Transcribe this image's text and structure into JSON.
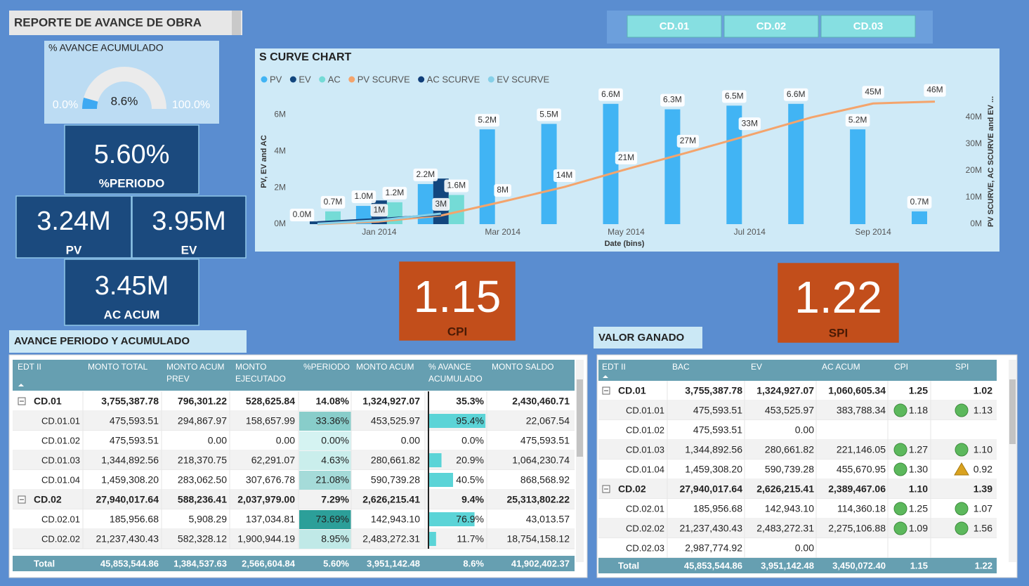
{
  "header": {
    "title": "REPORTE DE AVANCE DE OBRA"
  },
  "filters": [
    "CD.01",
    "CD.02",
    "CD.03"
  ],
  "gauge": {
    "title": "% AVANCE ACUMULADO",
    "value": 8.6,
    "value_label": "8.6%",
    "min": 0,
    "min_label": "0.0%",
    "max": 100,
    "max_label": "100.0%"
  },
  "kpis": [
    {
      "value": "5.60%",
      "label": "%PERIODO"
    },
    {
      "value": "3.24M",
      "label": "PV"
    },
    {
      "value": "3.95M",
      "label": "EV"
    },
    {
      "value": "3.45M",
      "label": "AC ACUM"
    },
    {
      "value": "1.15",
      "label": "CPI"
    },
    {
      "value": "1.22",
      "label": "SPI"
    }
  ],
  "s_curve": {
    "type": "bar",
    "title": "S CURVE CHART",
    "x_label": "Date (bins)",
    "y_label": "PV, EV and AC",
    "y2_label": "PV SCURVE, AC SCURVE and EV ...",
    "categories": [
      null,
      "Jan 2014",
      null,
      "Mar 2014",
      null,
      "May 2014",
      null,
      "Jul 2014",
      null,
      "Sep 2014",
      null
    ],
    "ylim": [
      0,
      6900000
    ],
    "yticks": [
      {
        "value": 0,
        "label": "0M"
      },
      {
        "value": 2000000,
        "label": "2M"
      },
      {
        "value": 4000000,
        "label": "4M"
      },
      {
        "value": 6000000,
        "label": "6M"
      }
    ],
    "y2lim": [
      0,
      47000000
    ],
    "y2ticks": [
      {
        "value": 0,
        "label": "0M"
      },
      {
        "value": 10000000,
        "label": "10M"
      },
      {
        "value": 20000000,
        "label": "20M"
      },
      {
        "value": 30000000,
        "label": "30M"
      },
      {
        "value": 40000000,
        "label": "40M"
      }
    ],
    "series": [
      {
        "name": "PV",
        "color": "#41b4f4",
        "values": [
          0,
          1000000,
          2200000,
          5200000,
          5500000,
          6600000,
          6300000,
          6500000,
          6600000,
          5200000,
          700000
        ],
        "value_labels": [
          "0.0M",
          "1.0M",
          "2.2M",
          "5.2M",
          "5.5M",
          "6.6M",
          "6.3M",
          "6.5M",
          "6.6M",
          "5.2M",
          "0.7M"
        ]
      },
      {
        "name": "EV",
        "color": "#12467e",
        "values": [
          150000,
          1300000,
          2500000,
          null,
          null,
          null,
          null,
          null,
          null,
          null,
          null
        ]
      },
      {
        "name": "AC",
        "color": "#74dbd6",
        "values": [
          700000,
          1200000,
          1600000,
          null,
          null,
          null,
          null,
          null,
          null,
          null,
          null
        ],
        "value_labels": [
          "0.7M",
          "1.2M",
          "1.6M",
          null,
          null,
          null,
          null,
          null,
          null,
          null,
          null
        ]
      },
      {
        "name": "PV SCURVE",
        "color": "#f4a46c",
        "type": "line",
        "axis": "y2",
        "values": [
          0,
          1000000,
          3200000,
          8400000,
          13900000,
          20500000,
          26800000,
          33300000,
          39900000,
          45100000,
          45800000
        ],
        "value_labels": [
          null,
          "1M",
          "3M",
          "8M",
          "14M",
          "21M",
          "27M",
          "33M",
          null,
          "45M",
          "46M"
        ]
      },
      {
        "name": "AC SCURVE",
        "color": "#103e79",
        "type": "line",
        "axis": "y2",
        "values": [
          700000,
          1900000,
          3500000,
          null,
          null,
          null,
          null,
          null,
          null,
          null,
          null
        ]
      },
      {
        "name": "EV SCURVE",
        "color": "#86d0e8",
        "type": "line",
        "axis": "y2",
        "values": [
          150000,
          1450000,
          3950000,
          null,
          null,
          null,
          null,
          null,
          null,
          null,
          null
        ]
      }
    ]
  },
  "avance": {
    "title": "AVANCE PERIODO Y ACUMULADO",
    "columns": [
      "EDT II",
      "MONTO TOTAL",
      "MONTO ACUM PREV",
      "MONTO EJECUTADO",
      "%PERIODO",
      "MONTO ACUM",
      "% AVANCE ACUMULADO",
      "MONTO SALDO"
    ],
    "groups": [
      {
        "cells": [
          "CD.01",
          "3,755,387.78",
          "796,301.22",
          "528,625.84",
          "14.08%",
          "1,324,927.07",
          "35.3%",
          "2,430,460.71"
        ],
        "children": [
          [
            "CD.01.01",
            "475,593.51",
            "294,867.97",
            "158,657.99",
            "33.36%",
            "453,525.97",
            "95.4%",
            "22,067.54"
          ],
          [
            "CD.01.02",
            "475,593.51",
            "0.00",
            "0.00",
            "0.00%",
            "0.00",
            "0.0%",
            "475,593.51"
          ],
          [
            "CD.01.03",
            "1,344,892.56",
            "218,370.75",
            "62,291.07",
            "4.63%",
            "280,661.82",
            "20.9%",
            "1,064,230.74"
          ],
          [
            "CD.01.04",
            "1,459,308.20",
            "283,062.50",
            "307,676.78",
            "21.08%",
            "590,739.28",
            "40.5%",
            "868,568.92"
          ]
        ]
      },
      {
        "cells": [
          "CD.02",
          "27,940,017.64",
          "588,236.41",
          "2,037,979.00",
          "7.29%",
          "2,626,215.41",
          "9.4%",
          "25,313,802.22"
        ],
        "children": [
          [
            "CD.02.01",
            "185,956.68",
            "5,908.29",
            "137,034.81",
            "73.69%",
            "142,943.10",
            "76.9%",
            "43,013.57"
          ],
          [
            "CD.02.02",
            "21,237,430.43",
            "582,328.12",
            "1,900,944.19",
            "8.95%",
            "2,483,272.31",
            "11.7%",
            "18,754,158.12"
          ]
        ]
      }
    ],
    "total": [
      "Total",
      "45,853,544.86",
      "1,384,537.63",
      "2,566,604.84",
      "5.60%",
      "3,951,142.48",
      "8.6%",
      "41,902,402.37"
    ]
  },
  "valor_ganado": {
    "title": "VALOR GANADO",
    "columns": [
      "EDT II",
      "BAC",
      "EV",
      "AC ACUM",
      "CPI",
      "SPI"
    ],
    "groups": [
      {
        "cells": [
          "CD.01",
          "3,755,387.78",
          "1,324,927.07",
          "1,060,605.34",
          "1.25",
          "1.02"
        ],
        "children": [
          [
            "CD.01.01",
            "475,593.51",
            "453,525.97",
            "383,788.34",
            "1.18",
            "1.13"
          ],
          [
            "CD.01.02",
            "475,593.51",
            "0.00",
            null,
            null,
            null
          ],
          [
            "CD.01.03",
            "1,344,892.56",
            "280,661.82",
            "221,146.05",
            "1.27",
            "1.10"
          ],
          [
            "CD.01.04",
            "1,459,308.20",
            "590,739.28",
            "455,670.95",
            "1.30",
            "0.92"
          ]
        ]
      },
      {
        "cells": [
          "CD.02",
          "27,940,017.64",
          "2,626,215.41",
          "2,389,467.06",
          "1.10",
          "1.39"
        ],
        "children": [
          [
            "CD.02.01",
            "185,956.68",
            "142,943.10",
            "114,360.18",
            "1.25",
            "1.07"
          ],
          [
            "CD.02.02",
            "21,237,430.43",
            "2,483,272.31",
            "2,275,106.88",
            "1.09",
            "1.56"
          ],
          [
            "CD.02.03",
            "2,987,774.92",
            "0.00",
            null,
            null,
            null
          ]
        ]
      }
    ],
    "total": [
      "Total",
      "45,853,544.86",
      "3,951,142.48",
      "3,450,072.40",
      "1.15",
      "1.22"
    ]
  }
}
